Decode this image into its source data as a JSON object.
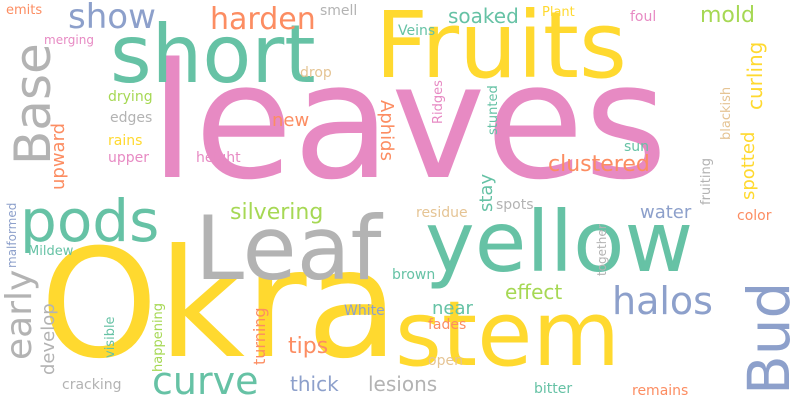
{
  "wordcloud": {
    "colors": {
      "pink": "#e78ac3",
      "green": "#66c2a5",
      "yellow": "#ffd92f",
      "orange": "#fc8d62",
      "blue": "#8da0cb",
      "lime": "#a6d854",
      "grey": "#b3b3b3",
      "tan": "#e5c494"
    },
    "words": [
      "leaves",
      "Okra",
      "Fruits",
      "short",
      "yellow",
      "Leaf",
      "stem",
      "pods",
      "Base",
      "Bud",
      "halos",
      "curve",
      "harden",
      "show",
      "early",
      "silvering",
      "soaked",
      "clustered",
      "mold",
      "effect",
      "water",
      "spotted",
      "curling",
      "upward",
      "Aphids",
      "stay",
      "develop",
      "tips",
      "thick",
      "lesions",
      "turning",
      "near",
      "new",
      "drying",
      "edges",
      "rains",
      "upper",
      "height",
      "sun",
      "foul",
      "Plant",
      "smell",
      "emits",
      "merging",
      "Veins",
      "drop",
      "Ridges",
      "stunted",
      "blackish",
      "fruiting",
      "residue",
      "spots",
      "color",
      "together",
      "brown",
      "White",
      "fades",
      "open",
      "happening",
      "visible",
      "Mildew",
      "malformed",
      "cracking",
      "bitter",
      "remains"
    ]
  }
}
